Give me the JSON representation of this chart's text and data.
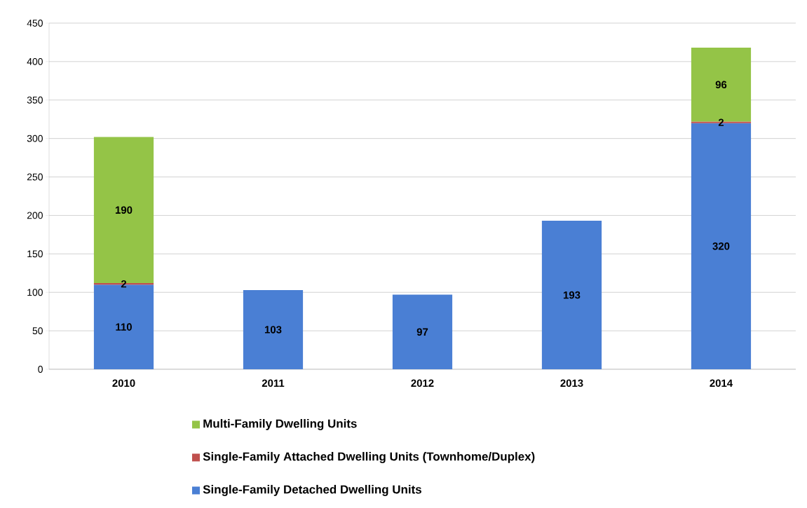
{
  "chart_data": {
    "type": "bar",
    "stacked": true,
    "categories": [
      "2010",
      "2011",
      "2012",
      "2013",
      "2014"
    ],
    "series": [
      {
        "name": "Single-Family Detached Dwelling Units",
        "color": "#4a7fd4",
        "values": [
          110,
          103,
          97,
          193,
          320
        ]
      },
      {
        "name": "Single-Family Attached Dwelling Units (Townhome/Duplex)",
        "color": "#c0504d",
        "values": [
          2,
          null,
          null,
          null,
          2
        ]
      },
      {
        "name": "Multi-Family Dwelling Units",
        "color": "#94c447",
        "values": [
          190,
          null,
          null,
          null,
          96
        ]
      }
    ],
    "ylim": [
      0,
      450
    ],
    "yticks": [
      0,
      50,
      100,
      150,
      200,
      250,
      300,
      350,
      400,
      450
    ],
    "grid": "y",
    "legend": "bottom",
    "data_labels": true
  }
}
